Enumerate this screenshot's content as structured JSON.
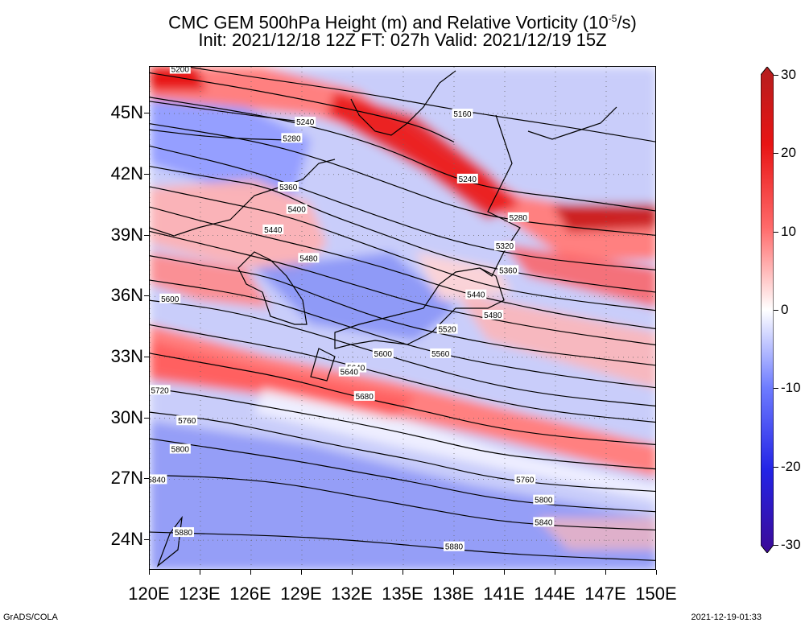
{
  "title": {
    "line1_prefix": "CMC GEM 500hPa Height (m) and Relative Vorticity (10",
    "line1_exp": "-5",
    "line1_suffix": "/s)",
    "line2": "Init: 2021/12/18 12Z  FT: 027h  Valid: 2021/12/19 15Z"
  },
  "axes": {
    "lat_labels": [
      "45N",
      "42N",
      "39N",
      "36N",
      "33N",
      "30N",
      "27N",
      "24N"
    ],
    "lon_labels": [
      "120E",
      "123E",
      "126E",
      "129E",
      "132E",
      "135E",
      "138E",
      "141E",
      "144E",
      "147E",
      "150E"
    ],
    "lat_values": [
      45,
      42,
      39,
      36,
      33,
      30,
      27,
      24
    ],
    "lon_values": [
      120,
      123,
      126,
      129,
      132,
      135,
      138,
      141,
      144,
      147,
      150
    ],
    "lon_range": [
      120,
      150
    ],
    "lat_range": [
      22.5,
      47.3
    ]
  },
  "colorbar": {
    "labels": [
      "30",
      "20",
      "10",
      "0",
      "-10",
      "-20",
      "-30"
    ],
    "values": [
      30,
      20,
      10,
      0,
      -10,
      -20,
      -30
    ],
    "colors": [
      "#b41e1e",
      "#e81414",
      "#ff6a6a",
      "#ffffff",
      "#6e7cff",
      "#2323e6",
      "#3c0a96"
    ]
  },
  "contours": [
    {
      "label": "5160",
      "points": [
        [
          120,
          47.6
        ],
        [
          126,
          46.8
        ],
        [
          132,
          46.1
        ],
        [
          138,
          45.2
        ],
        [
          141,
          44.8
        ],
        [
          145,
          44.3
        ],
        [
          150,
          43.6
        ]
      ],
      "label_at": [
        138.5,
        45.0
      ]
    },
    {
      "label": "5200",
      "points": [
        [
          120,
          47.0
        ],
        [
          126,
          46.2
        ],
        [
          132,
          45.2
        ],
        [
          136,
          44.4
        ],
        [
          138,
          43.6
        ]
      ],
      "label_at": [
        121.8,
        47.2
      ]
    },
    {
      "label": "5240",
      "points": [
        [
          120,
          45.8
        ],
        [
          126,
          45.0
        ],
        [
          130,
          44.3
        ],
        [
          134,
          43.3
        ],
        [
          138,
          41.8
        ],
        [
          141,
          41.2
        ],
        [
          145,
          40.8
        ],
        [
          150,
          40.2
        ]
      ],
      "label_at": [
        138.8,
        41.8
      ]
    },
    {
      "label": "5240",
      "points": [
        [
          120,
          45.6
        ],
        [
          126,
          44.9
        ],
        [
          129,
          44.6
        ]
      ],
      "label_at": [
        129.2,
        44.6
      ]
    },
    {
      "label": "5280",
      "points": [
        [
          120,
          44.5
        ],
        [
          126,
          43.7
        ],
        [
          130,
          42.8
        ],
        [
          134,
          41.6
        ],
        [
          138,
          40.4
        ],
        [
          141,
          39.8
        ],
        [
          145,
          39.4
        ],
        [
          150,
          39.0
        ]
      ],
      "label_at": [
        141.8,
        39.9
      ]
    },
    {
      "label": "5280",
      "points": [
        [
          120,
          44.2
        ],
        [
          124,
          43.8
        ],
        [
          128,
          43.7
        ]
      ],
      "label_at": [
        128.4,
        43.8
      ]
    },
    {
      "label": "5320",
      "points": [
        [
          120,
          43.4
        ],
        [
          126,
          42.2
        ],
        [
          130,
          41.0
        ],
        [
          134,
          39.8
        ],
        [
          138,
          38.7
        ],
        [
          142,
          38.0
        ],
        [
          146,
          37.6
        ],
        [
          150,
          37.3
        ]
      ],
      "label_at": [
        141.0,
        38.5
      ]
    },
    {
      "label": "5360",
      "points": [
        [
          120,
          42.4
        ],
        [
          124,
          41.8
        ],
        [
          127,
          41.4
        ],
        [
          130,
          40.2
        ],
        [
          134,
          39.0
        ],
        [
          138,
          37.8
        ],
        [
          142,
          37.1
        ],
        [
          146,
          36.6
        ],
        [
          150,
          36.2
        ]
      ],
      "label_at": [
        128.2,
        41.4
      ]
    },
    {
      "label": "5400",
      "points": [
        [
          120,
          41.4
        ],
        [
          124,
          40.7
        ],
        [
          128,
          40.0
        ],
        [
          132,
          38.8
        ],
        [
          136,
          37.6
        ],
        [
          140,
          36.5
        ],
        [
          144,
          35.9
        ],
        [
          150,
          35.3
        ]
      ],
      "label_at": [
        128.7,
        40.3
      ]
    },
    {
      "label": "5440",
      "points": [
        [
          120,
          40.4
        ],
        [
          124,
          39.5
        ],
        [
          127,
          38.9
        ],
        [
          130,
          38.3
        ],
        [
          134,
          37.4
        ],
        [
          138,
          36.3
        ],
        [
          141,
          35.7
        ],
        [
          145,
          35.0
        ],
        [
          150,
          34.4
        ]
      ],
      "label_at": [
        127.3,
        39.3
      ]
    },
    {
      "label": "5480",
      "points": [
        [
          120,
          39.2
        ],
        [
          124,
          38.4
        ],
        [
          128,
          37.6
        ],
        [
          132,
          36.6
        ],
        [
          136,
          35.6
        ],
        [
          140,
          34.9
        ],
        [
          144,
          34.3
        ],
        [
          150,
          33.6
        ]
      ],
      "label_at": [
        129.4,
        37.9
      ]
    },
    {
      "label": "5520",
      "points": [
        [
          120,
          38.0
        ],
        [
          124,
          37.4
        ],
        [
          127,
          37.0
        ],
        [
          130,
          36.0
        ],
        [
          134,
          34.8
        ],
        [
          138,
          34.0
        ],
        [
          142,
          33.4
        ],
        [
          146,
          33.0
        ],
        [
          150,
          32.6
        ]
      ],
      "label_at": [
        137.6,
        34.4
      ]
    },
    {
      "label": "5560",
      "points": [
        [
          120,
          36.8
        ],
        [
          124,
          36.3
        ],
        [
          127,
          35.8
        ],
        [
          130,
          35.0
        ],
        [
          134,
          33.9
        ],
        [
          138,
          33.0
        ],
        [
          142,
          32.4
        ],
        [
          146,
          31.9
        ],
        [
          150,
          31.5
        ]
      ],
      "label_at": [
        137.2,
        33.2
      ]
    },
    {
      "label": "5600",
      "points": [
        [
          120,
          35.8
        ],
        [
          124,
          35.4
        ],
        [
          128,
          34.6
        ],
        [
          132,
          33.6
        ],
        [
          136,
          32.6
        ],
        [
          140,
          31.7
        ],
        [
          144,
          31.1
        ],
        [
          150,
          30.6
        ]
      ],
      "label_at": [
        121.2,
        35.9
      ]
    },
    {
      "label": "5640",
      "points": [
        [
          120,
          34.6
        ],
        [
          124,
          34.0
        ],
        [
          128,
          33.4
        ],
        [
          132,
          32.6
        ],
        [
          136,
          31.7
        ],
        [
          140,
          30.9
        ],
        [
          144,
          30.3
        ],
        [
          150,
          29.8
        ]
      ],
      "label_at": [
        132.2,
        32.5
      ]
    },
    {
      "label": "5680",
      "points": [
        [
          120,
          33.2
        ],
        [
          124,
          32.6
        ],
        [
          128,
          32.0
        ],
        [
          132,
          31.1
        ],
        [
          136,
          30.4
        ],
        [
          140,
          29.6
        ],
        [
          144,
          29.1
        ],
        [
          150,
          28.7
        ]
      ],
      "label_at": [
        132.7,
        31.1
      ]
    },
    {
      "label": "5720",
      "points": [
        [
          120,
          31.5
        ],
        [
          124,
          31.0
        ],
        [
          128,
          30.4
        ],
        [
          132,
          29.8
        ],
        [
          136,
          29.1
        ],
        [
          140,
          28.3
        ],
        [
          144,
          27.9
        ],
        [
          150,
          27.5
        ]
      ],
      "label_at": [
        120.6,
        31.4
      ]
    },
    {
      "label": "5760",
      "points": [
        [
          120,
          30.3
        ],
        [
          124,
          29.9
        ],
        [
          128,
          29.2
        ],
        [
          132,
          28.5
        ],
        [
          136,
          27.9
        ],
        [
          140,
          27.1
        ],
        [
          144,
          26.7
        ],
        [
          150,
          26.4
        ]
      ],
      "label_at": [
        142.2,
        27.0
      ]
    },
    {
      "label": "5800",
      "points": [
        [
          120,
          29.0
        ],
        [
          124,
          28.5
        ],
        [
          128,
          28.0
        ],
        [
          132,
          27.4
        ],
        [
          136,
          26.8
        ],
        [
          140,
          26.1
        ],
        [
          144,
          25.7
        ],
        [
          150,
          25.4
        ]
      ],
      "label_at": [
        143.3,
        26.0
      ]
    },
    {
      "label": "5840",
      "points": [
        [
          120,
          27.2
        ],
        [
          124,
          27.1
        ],
        [
          128,
          26.8
        ],
        [
          132,
          26.2
        ],
        [
          136,
          25.6
        ],
        [
          140,
          25.0
        ],
        [
          144,
          24.7
        ],
        [
          150,
          24.5
        ]
      ],
      "label_at": [
        143.3,
        24.9
      ]
    },
    {
      "label": "5880",
      "points": [
        [
          120,
          24.4
        ],
        [
          124,
          24.3
        ],
        [
          128,
          24.2
        ],
        [
          132,
          24.0
        ],
        [
          136,
          23.7
        ],
        [
          140,
          23.4
        ],
        [
          144,
          23.2
        ],
        [
          150,
          23.0
        ]
      ],
      "label_at": [
        138.0,
        23.7
      ]
    }
  ],
  "extra_labels": [
    {
      "label": "5760",
      "at": [
        122.2,
        29.9
      ]
    },
    {
      "label": "5800",
      "at": [
        121.8,
        28.5
      ]
    },
    {
      "label": "5840",
      "at": [
        120.4,
        27.0
      ]
    },
    {
      "label": "5880",
      "at": [
        122.0,
        24.4
      ]
    },
    {
      "label": "5440",
      "at": [
        139.3,
        36.1
      ]
    },
    {
      "label": "5480",
      "at": [
        140.3,
        35.1
      ]
    },
    {
      "label": "5600",
      "at": [
        133.8,
        33.2
      ]
    },
    {
      "label": "5640",
      "at": [
        131.8,
        32.3
      ]
    },
    {
      "label": "5360",
      "at": [
        141.2,
        37.3
      ]
    }
  ],
  "footer": {
    "left": "GrADS/COLA",
    "right": "2021-12-19-01:33"
  }
}
